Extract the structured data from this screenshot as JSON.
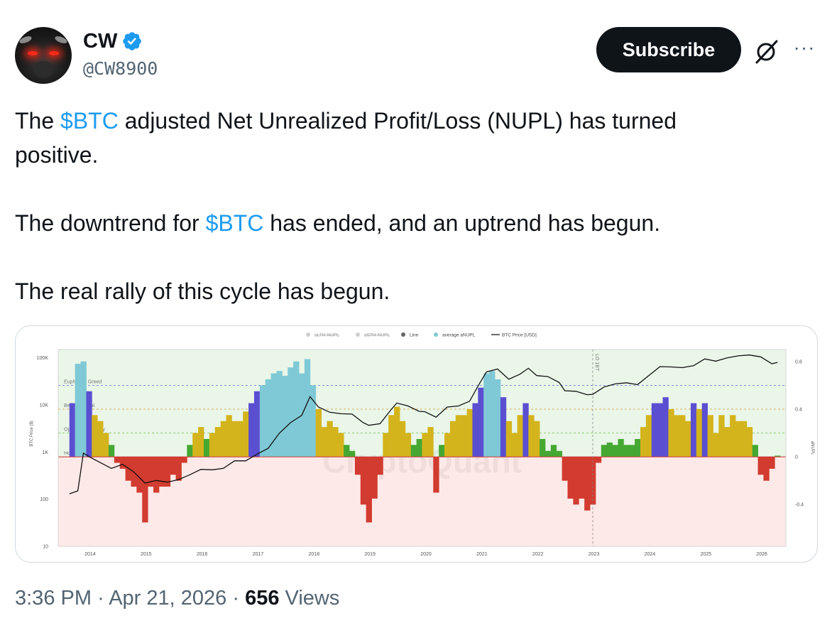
{
  "author": {
    "name": "CW",
    "handle": "@CW8900",
    "verified": true,
    "avatar_icon": "bull-red-eyes-avatar"
  },
  "actions": {
    "subscribe_label": "Subscribe",
    "grok_icon": "grok-icon",
    "more_label": "···"
  },
  "tweet": {
    "line1_pre": "The ",
    "cashtag": "$BTC",
    "line1_post": " adjusted Net Unrealized Profit/Loss (NUPL) has turned",
    "line2": "positive.",
    "line3_pre": "The downtrend for ",
    "line3_post": " has ended, and an uptrend has begun.",
    "line4": "The real rally of this cycle has begun."
  },
  "footer": {
    "time": "3:36 PM",
    "sep": "·",
    "date": "Apr 21, 2026",
    "views_count": "656",
    "views_label": "Views"
  },
  "colors": {
    "accent": "#1d9bf0",
    "text": "#0f1419",
    "muted": "#536471",
    "euphoria": "#7fc9d6",
    "belief": "#5a4fd1",
    "optimism": "#d4b41c",
    "hope": "#45a832",
    "capitulation": "#d23b2f",
    "positive_bg": "#e9f6e8",
    "negative_bg": "#fde9e7"
  },
  "chart_data": {
    "type": "area",
    "title": "",
    "legend": [
      "aLTH-NUPL",
      "aSTH-NUPL",
      "Line",
      "average aNUPL",
      "BTC Price [USD]"
    ],
    "legend_position": "top-center",
    "watermark": "CryptoQuant",
    "ylabel_left": "BTC Price ($)",
    "ylabel_right": "aNUPL",
    "y_left_scale": "log",
    "y_left_ticks": [
      "100K",
      "10K",
      "1K",
      "100",
      "10"
    ],
    "y_right_ticks": [
      "0.8",
      "0.4",
      "0",
      "-0.4"
    ],
    "ylim_right": [
      -0.75,
      0.9
    ],
    "ylim_left": [
      10,
      150000
    ],
    "x_ticks": [
      "2014",
      "2015",
      "2016",
      "2017",
      "2018",
      "2019",
      "2020",
      "2021",
      "2022",
      "2023",
      "2024",
      "2025",
      "2026"
    ],
    "zones": [
      {
        "label": "Euphoria / Greed",
        "level": 0.6
      },
      {
        "label": "Belief / Denial",
        "level": 0.4
      },
      {
        "label": "Optimism / Anxiety",
        "level": 0.2
      },
      {
        "label": "Hope / Fear",
        "level": 0.0
      }
    ],
    "vline_label": "LO 1BT",
    "vline_year": 2023.0,
    "series": [
      {
        "name": "average aNUPL",
        "x": [
          2013.7,
          2013.8,
          2013.9,
          2014.0,
          2014.1,
          2014.2,
          2014.3,
          2014.4,
          2014.5,
          2014.6,
          2014.7,
          2014.8,
          2014.9,
          2015.0,
          2015.1,
          2015.2,
          2015.3,
          2015.4,
          2015.5,
          2015.6,
          2015.7,
          2015.8,
          2015.9,
          2016.0,
          2016.1,
          2016.2,
          2016.3,
          2016.4,
          2016.5,
          2016.6,
          2016.7,
          2016.8,
          2016.9,
          2017.0,
          2017.1,
          2017.2,
          2017.3,
          2017.4,
          2017.5,
          2017.6,
          2017.7,
          2017.8,
          2017.9,
          2018.0,
          2018.1,
          2018.2,
          2018.3,
          2018.4,
          2018.5,
          2018.6,
          2018.7,
          2018.8,
          2018.9,
          2019.0,
          2019.1,
          2019.2,
          2019.3,
          2019.4,
          2019.5,
          2019.6,
          2019.7,
          2019.8,
          2019.9,
          2020.0,
          2020.1,
          2020.2,
          2020.3,
          2020.4,
          2020.5,
          2020.6,
          2020.7,
          2020.8,
          2020.9,
          2021.0,
          2021.1,
          2021.2,
          2021.3,
          2021.4,
          2021.5,
          2021.6,
          2021.7,
          2021.8,
          2021.9,
          2022.0,
          2022.1,
          2022.2,
          2022.3,
          2022.4,
          2022.5,
          2022.6,
          2022.7,
          2022.8,
          2022.9,
          2023.0,
          2023.1,
          2023.2,
          2023.3,
          2023.4,
          2023.5,
          2023.6,
          2023.7,
          2023.8,
          2023.9,
          2024.0,
          2024.1,
          2024.2,
          2024.3,
          2024.4,
          2024.5,
          2024.6,
          2024.7,
          2024.8,
          2024.9,
          2025.0,
          2025.1,
          2025.2,
          2025.3,
          2025.4,
          2025.5,
          2025.6,
          2025.7,
          2025.8,
          2025.9,
          2026.0,
          2026.1,
          2026.2,
          2026.3
        ],
        "values": [
          0.45,
          0.78,
          0.8,
          0.55,
          0.35,
          0.3,
          0.2,
          0.1,
          -0.05,
          -0.1,
          -0.2,
          -0.25,
          -0.3,
          -0.55,
          -0.25,
          -0.3,
          -0.25,
          -0.25,
          -0.15,
          -0.2,
          -0.05,
          0.1,
          0.2,
          0.25,
          0.15,
          0.2,
          0.25,
          0.3,
          0.35,
          0.3,
          0.3,
          0.38,
          0.45,
          0.55,
          0.6,
          0.65,
          0.7,
          0.72,
          0.68,
          0.75,
          0.8,
          0.7,
          0.82,
          0.6,
          0.4,
          0.25,
          0.3,
          0.25,
          0.2,
          0.1,
          0.05,
          -0.15,
          -0.4,
          -0.55,
          -0.35,
          -0.15,
          0.2,
          0.35,
          0.42,
          0.3,
          0.2,
          0.1,
          0.15,
          0.2,
          0.25,
          -0.3,
          0.1,
          0.2,
          0.3,
          0.35,
          0.35,
          0.4,
          0.45,
          0.58,
          0.7,
          0.72,
          0.65,
          0.5,
          0.3,
          0.2,
          0.35,
          0.45,
          0.35,
          0.3,
          0.15,
          0.05,
          0.1,
          0.05,
          -0.2,
          -0.35,
          -0.4,
          -0.35,
          -0.45,
          -0.4,
          -0.05,
          0.1,
          0.12,
          0.1,
          0.15,
          0.1,
          0.1,
          0.15,
          0.25,
          0.35,
          0.45,
          0.45,
          0.5,
          0.4,
          0.35,
          0.35,
          0.3,
          0.45,
          0.4,
          0.45,
          0.35,
          0.2,
          0.35,
          0.25,
          0.35,
          0.3,
          0.3,
          0.25,
          0.1,
          -0.15,
          -0.2,
          -0.1,
          0.01
        ]
      },
      {
        "name": "BTC Price [USD]",
        "x": [
          2013.65,
          2013.8,
          2013.9,
          2014.0,
          2014.2,
          2014.4,
          2014.6,
          2014.8,
          2015.0,
          2015.2,
          2015.4,
          2015.6,
          2015.8,
          2016.0,
          2016.2,
          2016.4,
          2016.6,
          2016.8,
          2017.0,
          2017.2,
          2017.4,
          2017.6,
          2017.8,
          2017.95,
          2018.1,
          2018.3,
          2018.5,
          2018.7,
          2018.9,
          2019.0,
          2019.2,
          2019.4,
          2019.5,
          2019.7,
          2019.9,
          2020.0,
          2020.2,
          2020.4,
          2020.6,
          2020.8,
          2020.95,
          2021.1,
          2021.3,
          2021.5,
          2021.7,
          2021.85,
          2022.0,
          2022.2,
          2022.4,
          2022.5,
          2022.7,
          2022.9,
          2023.0,
          2023.2,
          2023.4,
          2023.6,
          2023.8,
          2024.0,
          2024.2,
          2024.4,
          2024.6,
          2024.8,
          2025.0,
          2025.2,
          2025.4,
          2025.6,
          2025.8,
          2026.0,
          2026.2,
          2026.3
        ],
        "values": [
          130,
          150,
          950,
          800,
          600,
          450,
          550,
          380,
          220,
          250,
          230,
          260,
          330,
          430,
          420,
          450,
          650,
          650,
          900,
          1200,
          2500,
          4200,
          6000,
          15000,
          9000,
          7000,
          6500,
          6400,
          4200,
          3700,
          4000,
          8000,
          11000,
          9500,
          7300,
          7200,
          5500,
          9000,
          9500,
          12000,
          25000,
          50000,
          58000,
          35000,
          45000,
          60000,
          42000,
          40000,
          30000,
          20000,
          19500,
          16500,
          16800,
          24000,
          28000,
          29500,
          27000,
          42000,
          65000,
          64000,
          62000,
          68000,
          95000,
          85000,
          100000,
          110000,
          115000,
          105000,
          75000,
          80000
        ]
      }
    ]
  }
}
